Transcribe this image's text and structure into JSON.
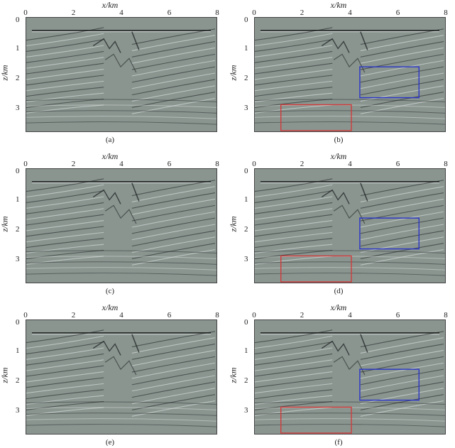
{
  "figure": {
    "x_axis_label": "x/km",
    "y_axis_label": "z/km",
    "x_ticks": [
      "0",
      "2",
      "4",
      "6",
      "8"
    ],
    "y_ticks": [
      "0",
      "1",
      "2",
      "3"
    ],
    "colors": {
      "background": "#8a9590",
      "reflector_dark": "#1a1d1c",
      "reflector_light": "#e8ece9",
      "box_blue": "#2a34c8",
      "box_red": "#d23a3a"
    },
    "panels": [
      {
        "caption": "(a)",
        "boxes": false
      },
      {
        "caption": "(b)",
        "boxes": true
      },
      {
        "caption": "(c)",
        "boxes": false
      },
      {
        "caption": "(d)",
        "boxes": true
      },
      {
        "caption": "(e)",
        "boxes": false
      },
      {
        "caption": "(f)",
        "boxes": true
      }
    ]
  }
}
